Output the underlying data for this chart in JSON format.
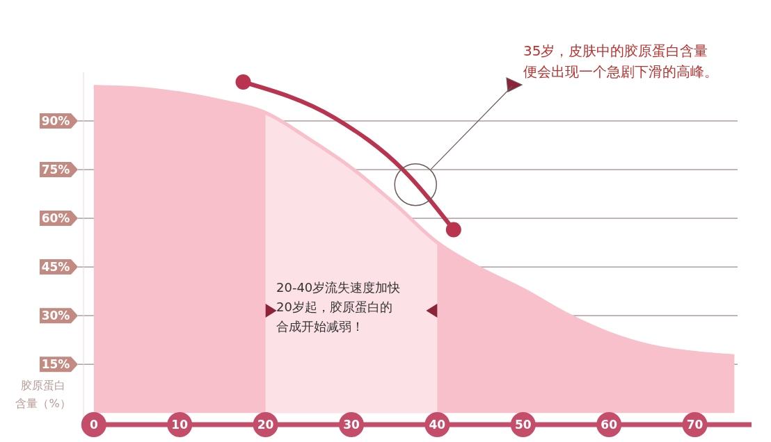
{
  "chart_data": {
    "type": "area",
    "ylabel": "胶原蛋白含量（%）",
    "xlim": [
      -1.2,
      76.6
    ],
    "xticks": [
      0,
      10,
      20,
      30,
      40,
      50,
      60,
      70
    ],
    "ylim": [
      -3.6,
      105
    ],
    "yticks": [
      {
        "value": 15,
        "label": "15%"
      },
      {
        "value": 30,
        "label": "30%"
      },
      {
        "value": 45,
        "label": "45%"
      },
      {
        "value": 60,
        "label": "60%"
      },
      {
        "value": 75,
        "label": "75%"
      },
      {
        "value": 90,
        "label": "90%"
      }
    ],
    "grid": "y",
    "series": [
      {
        "color": "#f8c0cb",
        "x": [
          0,
          5,
          10,
          15,
          20,
          25,
          30,
          35,
          40,
          45,
          50,
          55,
          60,
          65,
          70,
          74.6
        ],
        "values": [
          101,
          100.5,
          99,
          96.5,
          93,
          85,
          76,
          65,
          53,
          45,
          38.5,
          31,
          25,
          21,
          19,
          18
        ]
      },
      {
        "type": "line",
        "color": "#b8344f",
        "marker": "circle",
        "line_style": "solid",
        "x": [
          17.4,
          28,
          36,
          41.9
        ],
        "values": [
          102,
          91,
          75,
          56.5
        ]
      }
    ],
    "bands": [
      {
        "axis": "x",
        "from": 20,
        "to": 40,
        "color": "#fde8ec"
      }
    ],
    "annotations": [
      "35岁，皮肤中的胶原蛋白含量便会出现一个急剧下滑的高峰。",
      "20-40岁流失速度加快20岁起，胶原蛋白的合成开始减弱！"
    ]
  }
}
